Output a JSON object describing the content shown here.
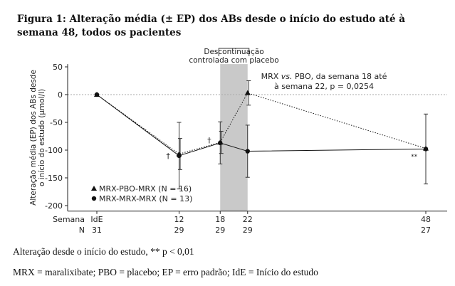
{
  "figure": {
    "title": "Figura 1: Alteração média (± EP) dos ABs desde o início do estudo até à semana 48, todos os pacientes",
    "footnote_1": "Alteração desde o início do estudo, ** p < 0,01",
    "footnote_2": "MRX = maralixibate; PBO = placebo; EP = erro padrão; IdE = Início do estudo"
  },
  "chart_data": {
    "type": "line",
    "ylabel": "Alteração média (EP) dos ABs desde o início do estudo (µmol/l)",
    "ylim": [
      -210,
      55
    ],
    "yticks": [
      50,
      0,
      -50,
      -100,
      -150,
      -200
    ],
    "x_positions": [
      0,
      12,
      18,
      22,
      48
    ],
    "x_tick_labels": [
      "IdE",
      "12",
      "18",
      "22",
      "48"
    ],
    "row_header_week": "Semana",
    "row_header_n": "N",
    "n_row_1": [
      "31",
      "29",
      "29",
      "29",
      "27"
    ],
    "n_row_2": [
      "",
      "",
      "",
      "",
      ""
    ],
    "shaded_region": {
      "x_start": 18,
      "x_end": 22,
      "label_line1": "Descontinuação",
      "label_line2": "controlada com placebo"
    },
    "annotation": {
      "line1": "MRX vs. PBO, da semana 18 até",
      "line2": "à semana 22, p = 0,0254",
      "x": 22,
      "y": 3
    },
    "series": [
      {
        "name": "MRX-PBO-MRX (N = 16)",
        "marker": "triangle",
        "line_style": "dotted",
        "x": [
          0,
          12,
          18,
          22,
          48
        ],
        "y": [
          0,
          -107,
          -86,
          3,
          -97
        ],
        "err": [
          0,
          28,
          20,
          22,
          0
        ]
      },
      {
        "name": "MRX-MRX-MRX (N = 13)",
        "marker": "circle",
        "line_style": "solid",
        "x": [
          0,
          12,
          18,
          22,
          48
        ],
        "y": [
          0,
          -110,
          -87,
          -102,
          -98
        ],
        "err": [
          0,
          60,
          38,
          47,
          63
        ]
      }
    ],
    "marks": [
      {
        "symbol": "†",
        "x": 10.4,
        "y": -110
      },
      {
        "symbol": "†",
        "x": 16.4,
        "y": -82
      },
      {
        "symbol": "**",
        "x": 46.3,
        "y": -110
      }
    ],
    "colors": {
      "line": "#111111",
      "shade": "#c9c9c9",
      "reference_line": "#aaaaaa"
    }
  }
}
